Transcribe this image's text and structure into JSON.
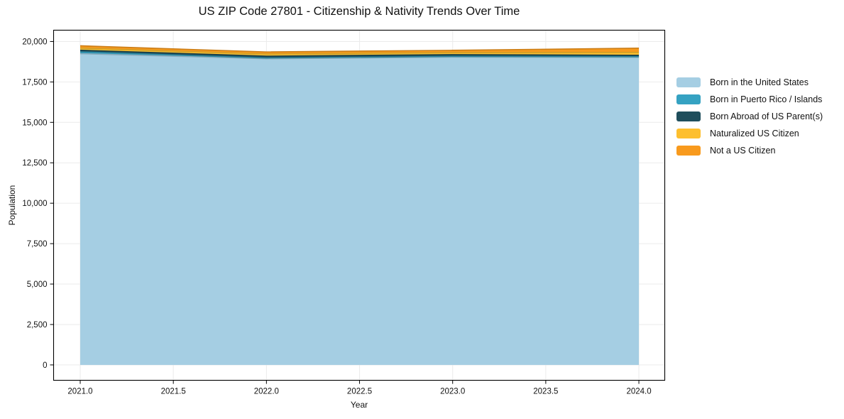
{
  "chart_data": {
    "type": "area",
    "stacked": true,
    "title": "US ZIP Code 27801 - Citizenship & Nativity Trends Over Time",
    "xlabel": "Year",
    "ylabel": "Population",
    "x": [
      2021,
      2022,
      2023,
      2024
    ],
    "series": [
      {
        "name": "Born in the United States",
        "color": "#a5cee3",
        "values": [
          19250,
          18935,
          19035,
          19020
        ]
      },
      {
        "name": "Born in Puerto Rico / Islands",
        "color": "#35a2c2",
        "values": [
          110,
          45,
          45,
          40
        ]
      },
      {
        "name": "Born Abroad of US Parent(s)",
        "color": "#1f4e5c",
        "values": [
          100,
          115,
          110,
          90
        ]
      },
      {
        "name": "Naturalized US Citizen",
        "color": "#fdbf2f",
        "values": [
          130,
          130,
          125,
          175
        ]
      },
      {
        "name": "Not a US Citizen",
        "color": "#f89a1d",
        "values": [
          145,
          130,
          140,
          265
        ]
      }
    ],
    "xticks": {
      "values": [
        2021,
        2021.5,
        2022,
        2022.5,
        2023,
        2023.5,
        2024
      ],
      "labels": [
        "2021.0",
        "2021.5",
        "2022.0",
        "2022.5",
        "2023.0",
        "2023.5",
        "2024.0"
      ]
    },
    "yticks": {
      "values": [
        0,
        2500,
        5000,
        7500,
        10000,
        12500,
        15000,
        17500,
        20000
      ],
      "labels": [
        "0",
        "2,500",
        "5,000",
        "7,500",
        "10,000",
        "12,500",
        "15,000",
        "17,500",
        "20,000"
      ]
    },
    "xlim": [
      2020.857,
      2024.139
    ],
    "ylim": [
      -950,
      20700
    ],
    "grid": true,
    "legend_position": "right-outside",
    "background_color": "#ffffff"
  }
}
